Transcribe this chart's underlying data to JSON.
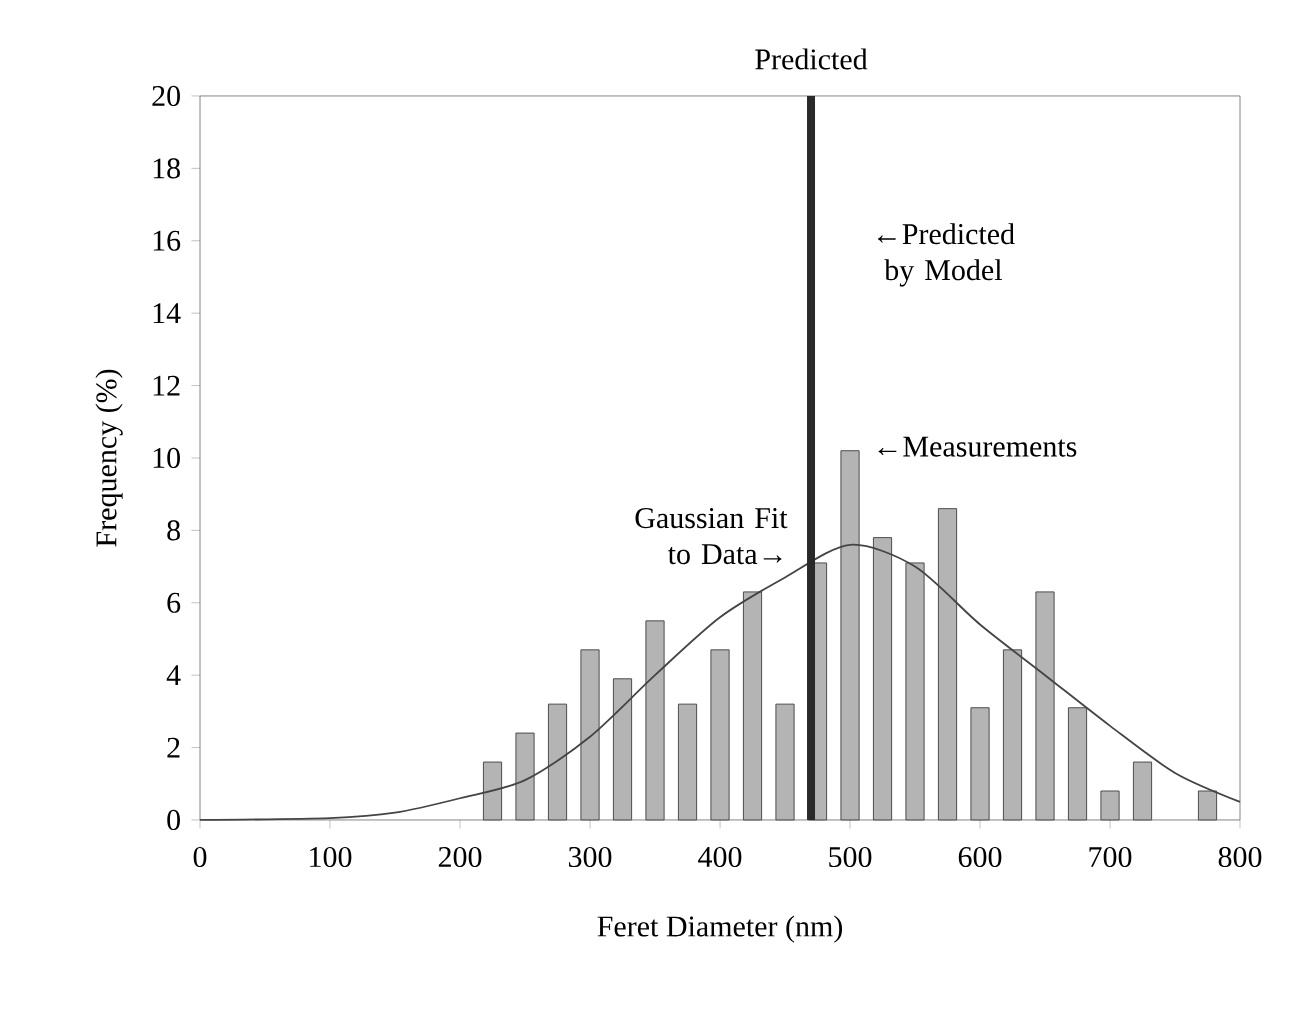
{
  "chart_data": {
    "type": "bar",
    "xlabel": "Feret Diameter (nm)",
    "ylabel": "Frequency (%)",
    "xlim": [
      0,
      800
    ],
    "ylim": [
      0,
      20
    ],
    "xticks": [
      0,
      100,
      200,
      300,
      400,
      500,
      600,
      700,
      800
    ],
    "yticks": [
      0,
      2,
      4,
      6,
      8,
      10,
      12,
      14,
      16,
      18,
      20
    ],
    "series": [
      {
        "color": "#b4b4b4",
        "x": [
          225,
          250,
          275,
          300,
          325,
          350,
          375,
          400,
          425,
          450,
          475,
          500,
          525,
          550,
          575,
          600,
          625,
          650,
          675,
          700,
          725,
          775
        ],
        "values": [
          1.6,
          2.4,
          3.2,
          4.7,
          3.9,
          5.5,
          3.2,
          4.7,
          6.3,
          3.2,
          7.1,
          10.2,
          7.8,
          7.1,
          8.6,
          3.1,
          4.7,
          6.3,
          3.1,
          0.8,
          1.6,
          0.8
        ]
      },
      {
        "type": "line",
        "color": "#444444",
        "x": [
          0,
          100,
          150,
          200,
          250,
          300,
          350,
          400,
          450,
          500,
          550,
          600,
          650,
          700,
          750,
          800
        ],
        "values": [
          0,
          0.05,
          0.2,
          0.6,
          1.1,
          2.3,
          4.0,
          5.6,
          6.7,
          7.6,
          7.0,
          5.4,
          4.0,
          2.6,
          1.3,
          0.5
        ]
      }
    ],
    "ref_lines": [
      {
        "axis": "x",
        "value": 470,
        "label": "Predicted",
        "color": "#2a2a2a"
      }
    ],
    "annotations": [
      {
        "text": "←Predicted by Model",
        "x": 470,
        "y": 16
      },
      {
        "text": "←Measurements",
        "x": 500,
        "y": 10.2
      },
      {
        "text": "Gaussian Fit to Data→",
        "x": 460,
        "y": 7.0
      }
    ]
  }
}
